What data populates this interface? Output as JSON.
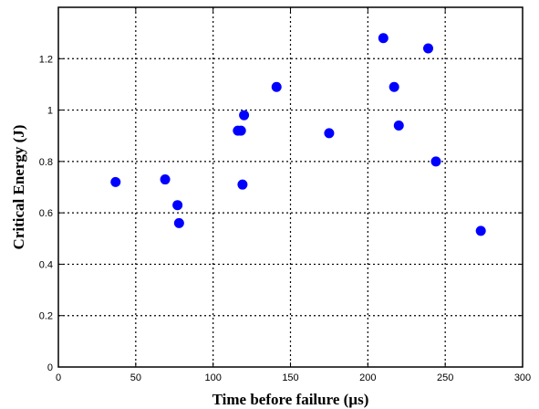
{
  "chart_data": {
    "type": "scatter",
    "xlabel": "Time before failure (µs)",
    "ylabel": "Critical Energy (J)",
    "xlim": [
      0,
      300
    ],
    "ylim": [
      0,
      1.4
    ],
    "x_ticks": [
      0,
      50,
      100,
      150,
      200,
      250,
      300
    ],
    "y_ticks": [
      0,
      0.2,
      0.4,
      0.6,
      0.8,
      1,
      1.2
    ],
    "x_tick_labels": [
      "0",
      "50",
      "100",
      "150",
      "200",
      "250",
      "300"
    ],
    "y_tick_labels": [
      "0",
      "0.2",
      "0.4",
      "0.6",
      "0.8",
      "1",
      "1.2"
    ],
    "grid": true,
    "marker_color": "#0000ff",
    "points": [
      {
        "x": 37,
        "y": 0.72
      },
      {
        "x": 69,
        "y": 0.73
      },
      {
        "x": 77,
        "y": 0.63
      },
      {
        "x": 78,
        "y": 0.56
      },
      {
        "x": 116,
        "y": 0.92
      },
      {
        "x": 118,
        "y": 0.92
      },
      {
        "x": 119,
        "y": 0.71
      },
      {
        "x": 120,
        "y": 0.98
      },
      {
        "x": 141,
        "y": 1.09
      },
      {
        "x": 175,
        "y": 0.91
      },
      {
        "x": 210,
        "y": 1.28
      },
      {
        "x": 217,
        "y": 1.09
      },
      {
        "x": 220,
        "y": 0.94
      },
      {
        "x": 239,
        "y": 1.24
      },
      {
        "x": 244,
        "y": 0.8
      },
      {
        "x": 273,
        "y": 0.53
      }
    ]
  }
}
